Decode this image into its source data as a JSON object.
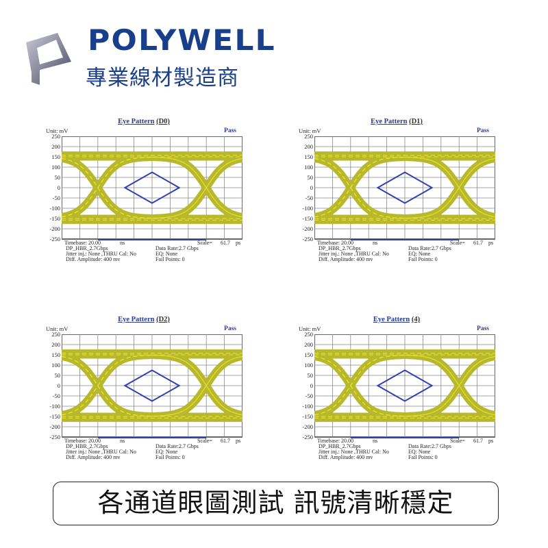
{
  "brand": {
    "name": "POLYWELL",
    "tagline": "專業線材製造商"
  },
  "panels": [
    {
      "title": "Eye  Pattern",
      "tag": "(D0)",
      "unit": "Unit: mV",
      "status": "Pass",
      "timebase": "Timebase: 20.00",
      "timebase_unit": "ns",
      "scale_label": "Scale=",
      "scale_value": "61.7",
      "scale_unit": "ps",
      "mode": "DP_HBR_2.7Gbps",
      "jitter": "Jitter inj.: None ,THRU Cal: No",
      "amplitude": "Diff. Amplitude: 400 mv",
      "data_rate": "Data Rate:2.7 Gbps",
      "eq": "EQ: None",
      "fail_points": "Fail Points: 0"
    },
    {
      "title": "Eye  Pattern",
      "tag": "(D1)",
      "unit": "Unit: mV",
      "status": "Pass",
      "timebase": "Timebase: 20.00",
      "timebase_unit": "ns",
      "scale_label": "Scale=",
      "scale_value": "61.7",
      "scale_unit": "ps",
      "mode": "DP_HBR_2.7Gbps",
      "jitter": "Jitter inj.: None ,THRU Cal: No",
      "amplitude": "Diff. Amplitude: 400 mv",
      "data_rate": "Data Rate:2.7 Gbps",
      "eq": "EQ: None",
      "fail_points": "Fail Points: 0"
    },
    {
      "title": "Eye  Pattern",
      "tag": "(D2)",
      "unit": "Unit: mV",
      "status": "Pass",
      "timebase": "Timebase: 20.00",
      "timebase_unit": "ns",
      "scale_label": "Scale=",
      "scale_value": "61.7",
      "scale_unit": "ps",
      "mode": "DP_HBR_2.7Gbps",
      "jitter": "Jitter inj.: None ,THRU Cal: No",
      "amplitude": "Diff. Amplitude: 400 mv",
      "data_rate": "Data Rate:2.7 Gbps",
      "eq": "EQ: None",
      "fail_points": "Fail Points: 0"
    },
    {
      "title": "Eye  Pattern",
      "tag": "(4)",
      "unit": "Unit: mV",
      "status": "Pass",
      "timebase": "Timebase: 20.00",
      "timebase_unit": "ns",
      "scale_label": "Scale=",
      "scale_value": "61.7",
      "scale_unit": "ps",
      "mode": "DP_HBR_2.7Gbps",
      "jitter": "Jitter inj.: None ,THRU Cal: No",
      "amplitude": "Diff. Amplitude: 400 mv",
      "data_rate": "Data Rate:2.7 Gbps",
      "eq": "EQ: None",
      "fail_points": "Fail Points: 0"
    }
  ],
  "y_ticks": [
    "250",
    "200",
    "150",
    "100",
    "50",
    "0",
    "-50",
    "-100",
    "-150",
    "-200",
    "-250"
  ],
  "y_range": [
    -250,
    250
  ],
  "mask_mV": 75,
  "colors": {
    "brand": "#1a3f8a",
    "trace": "#b8b82a",
    "trace_light": "#e6e63c",
    "mask": "#3040b0",
    "grid": "#888888"
  },
  "banner": "各通道眼圖測試 訊號清晰穩定"
}
